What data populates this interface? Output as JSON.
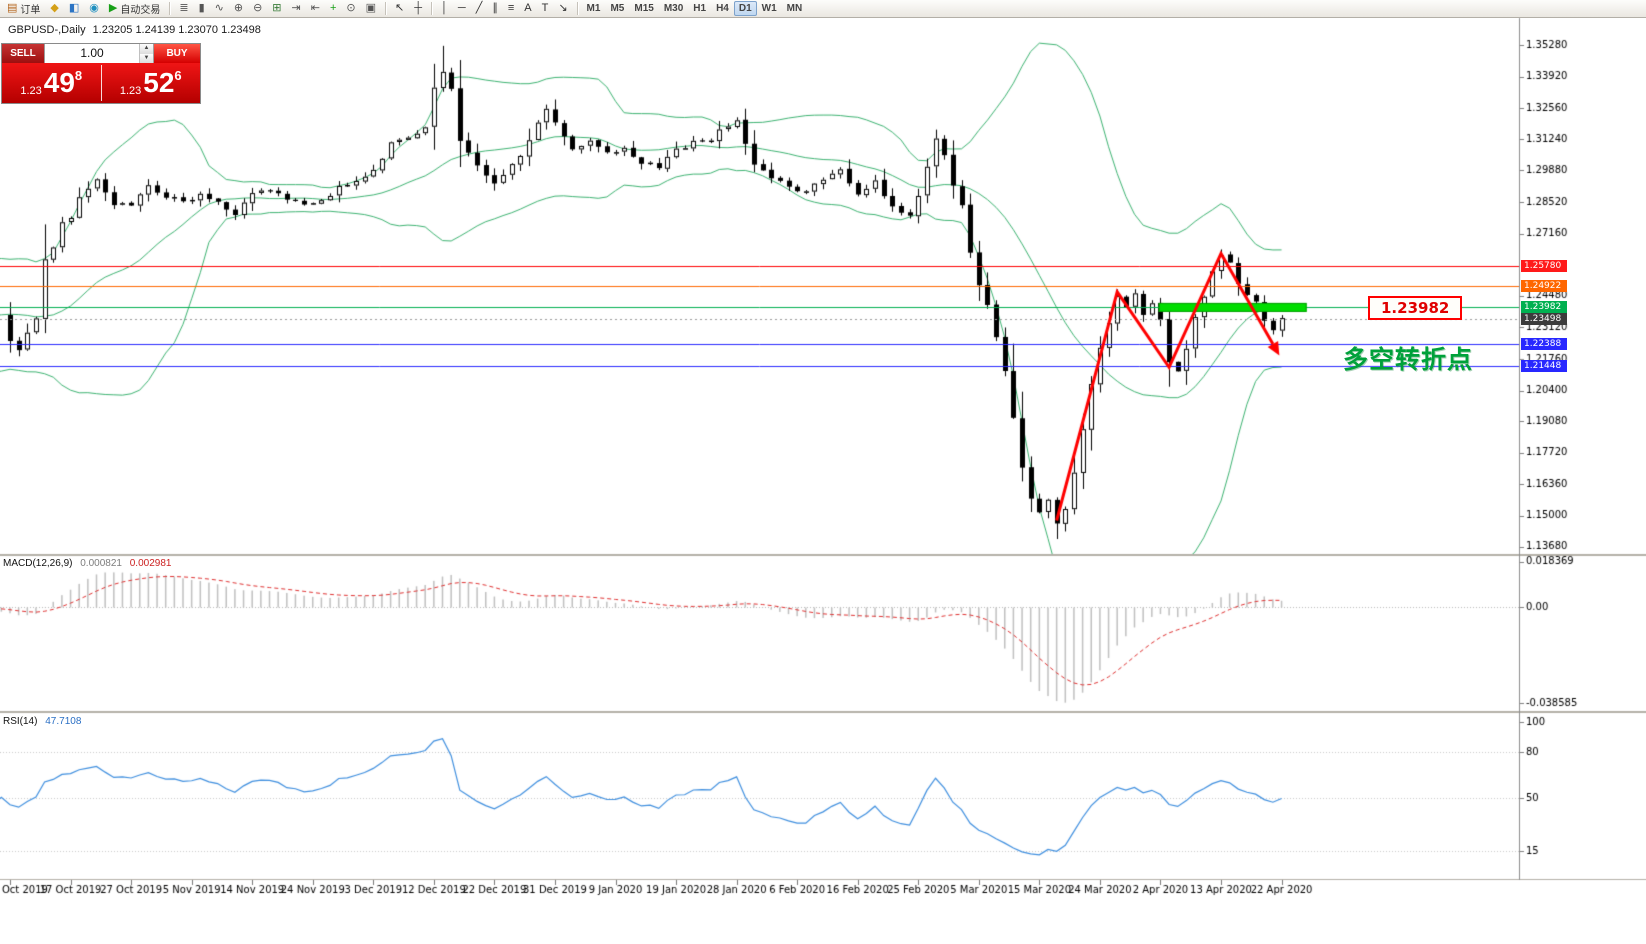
{
  "header": {
    "symbol_period": "GBPUSD-,Daily",
    "ohlc": "1.23205 1.24139 1.23070 1.23498"
  },
  "trade_panel": {
    "sell_label": "SELL",
    "buy_label": "BUY",
    "volume": "1.00",
    "spin_up": "▲",
    "spin_down": "▼",
    "sell_price_prefix": "1.23",
    "sell_price_big": "49",
    "sell_price_sup": "8",
    "buy_price_prefix": "1.23",
    "buy_price_big": "52",
    "buy_price_sup": "6"
  },
  "annotations": {
    "price_callout": "1.23982",
    "turning_point_note": "多空转折点"
  },
  "toolbar": {
    "groups": [
      {
        "items": [
          {
            "name": "new-order-button",
            "glyph": "▤",
            "glyph_color": "#b5651d",
            "label": "订单"
          },
          {
            "name": "market-watch-icon",
            "glyph": "◆",
            "glyph_color": "#d4a017"
          },
          {
            "name": "community-icon",
            "glyph": "◧",
            "glyph_color": "#2c74c4"
          },
          {
            "name": "help-icon",
            "glyph": "◉",
            "glyph_color": "#1f8fbf"
          },
          {
            "name": "autotrading-button",
            "glyph": "▶",
            "glyph_color": "#18a018",
            "label": "自动交易"
          }
        ]
      },
      {
        "items": [
          {
            "name": "bar-chart-mode-icon",
            "glyph": "≣",
            "glyph_color": "#555"
          },
          {
            "name": "candlestick-mode-icon",
            "glyph": "▮",
            "glyph_color": "#555"
          },
          {
            "name": "line-chart-mode-icon",
            "glyph": "∿",
            "glyph_color": "#555"
          },
          {
            "name": "zoom-in-icon",
            "glyph": "⊕",
            "glyph_color": "#555"
          },
          {
            "name": "zoom-out-icon",
            "glyph": "⊖",
            "glyph_color": "#555"
          },
          {
            "name": "tile-windows-icon",
            "glyph": "⊞",
            "glyph_color": "#3a7d3a"
          },
          {
            "name": "auto-scroll-icon",
            "glyph": "⇥",
            "glyph_color": "#555"
          },
          {
            "name": "chart-shift-icon",
            "glyph": "⇤",
            "glyph_color": "#555"
          },
          {
            "name": "indicators-add-icon",
            "glyph": "+",
            "glyph_color": "#18a018"
          },
          {
            "name": "period-clock-icon",
            "glyph": "⊙",
            "glyph_color": "#555"
          },
          {
            "name": "templates-icon",
            "glyph": "▣",
            "glyph_color": "#555"
          }
        ]
      },
      {
        "items": [
          {
            "name": "cursor-tool",
            "glyph": "↖",
            "glyph_color": "#333"
          },
          {
            "name": "crosshair-tool",
            "glyph": "┼",
            "glyph_color": "#333"
          }
        ]
      },
      {
        "items": [
          {
            "name": "vertical-line-tool",
            "glyph": "│",
            "glyph_color": "#333"
          },
          {
            "name": "horizontal-line-tool",
            "glyph": "─",
            "glyph_color": "#333"
          },
          {
            "name": "trendline-tool",
            "glyph": "╱",
            "glyph_color": "#333"
          },
          {
            "name": "channel-tool",
            "glyph": "∥",
            "glyph_color": "#333"
          },
          {
            "name": "fibonacci-tool",
            "glyph": "≡",
            "glyph_color": "#333"
          },
          {
            "name": "text-tool",
            "glyph": "A",
            "glyph_color": "#333"
          },
          {
            "name": "label-tool",
            "glyph": "T",
            "glyph_color": "#333"
          },
          {
            "name": "arrows-tool",
            "glyph": "↘",
            "glyph_color": "#333"
          }
        ]
      },
      {
        "items": [
          {
            "name": "timeframe-m1",
            "label": "M1",
            "tf": true
          },
          {
            "name": "timeframe-m5",
            "label": "M5",
            "tf": true
          },
          {
            "name": "timeframe-m15",
            "label": "M15",
            "tf": true
          },
          {
            "name": "timeframe-m30",
            "label": "M30",
            "tf": true
          },
          {
            "name": "timeframe-h1",
            "label": "H1",
            "tf": true
          },
          {
            "name": "timeframe-h4",
            "label": "H4",
            "tf": true
          },
          {
            "name": "timeframe-d1",
            "label": "D1",
            "tf": true,
            "active": true
          },
          {
            "name": "timeframe-w1",
            "label": "W1",
            "tf": true
          },
          {
            "name": "timeframe-mn",
            "label": "MN",
            "tf": true
          }
        ]
      }
    ]
  },
  "indicators": {
    "macd": {
      "title": "MACD(12,26,9)",
      "value1": "0.000821",
      "value2": "0.002981",
      "histogram_color": "#c0c0c0",
      "signal_color": "#e03030",
      "scale_labels": [
        [
          "0.018369",
          0.018369
        ],
        [
          "0.00",
          0
        ],
        [
          "-0.038585",
          -0.038585
        ]
      ]
    },
    "rsi": {
      "title": "RSI(14)",
      "value": "47.7108",
      "line_color": "#3f8fdf",
      "levels": [
        80,
        50,
        15
      ],
      "scale_labels": [
        [
          "100",
          100
        ],
        [
          "80",
          80
        ],
        [
          "50",
          50
        ],
        [
          "15",
          15
        ]
      ]
    }
  },
  "chart_data": {
    "type": "candlestick",
    "symbol": "GBPUSD-",
    "timeframe": "Daily",
    "last_ohlc": {
      "open": 1.23205,
      "high": 1.24139,
      "low": 1.2307,
      "close": 1.23498
    },
    "bid_price": 1.23498,
    "price_range_visible": [
      1.134,
      1.3645
    ],
    "price_axis_ticks": [
      1.3528,
      1.3392,
      1.3256,
      1.3124,
      1.2988,
      1.2852,
      1.2716,
      1.2448,
      1.2312,
      1.2176,
      1.204,
      1.1908,
      1.1772,
      1.1636,
      1.15,
      1.1368
    ],
    "date_labels": [
      "Oct 2019",
      "17 Oct 2019",
      "27 Oct 2019",
      "5 Nov 2019",
      "14 Nov 2019",
      "24 Nov 2019",
      "3 Dec 2019",
      "12 Dec 2019",
      "22 Dec 2019",
      "31 Dec 2019",
      "9 Jan 2020",
      "19 Jan 2020",
      "28 Jan 2020",
      "6 Feb 2020",
      "16 Feb 2020",
      "25 Feb 2020",
      "5 Mar 2020",
      "15 Mar 2020",
      "24 Mar 2020",
      "2 Apr 2020",
      "13 Apr 2020",
      "22 Apr 2020"
    ],
    "candles_per_date_label": 7,
    "num_candles": 148,
    "close_waypoints": [
      [
        0,
        1.2255
      ],
      [
        1,
        1.2225
      ],
      [
        2,
        1.229
      ],
      [
        3,
        1.2345
      ],
      [
        4,
        1.261
      ],
      [
        5,
        1.2645
      ],
      [
        6,
        1.276
      ],
      [
        7,
        1.279
      ],
      [
        8,
        1.2875
      ],
      [
        10,
        1.2955
      ],
      [
        12,
        1.285
      ],
      [
        14,
        1.2825
      ],
      [
        16,
        1.2935
      ],
      [
        18,
        1.287
      ],
      [
        20,
        1.286
      ],
      [
        22,
        1.288
      ],
      [
        24,
        1.2845
      ],
      [
        26,
        1.28
      ],
      [
        28,
        1.288
      ],
      [
        30,
        1.2905
      ],
      [
        32,
        1.286
      ],
      [
        34,
        1.2835
      ],
      [
        36,
        1.2855
      ],
      [
        38,
        1.2915
      ],
      [
        40,
        1.2935
      ],
      [
        42,
        1.2995
      ],
      [
        44,
        1.3105
      ],
      [
        46,
        1.3135
      ],
      [
        48,
        1.3165
      ],
      [
        49,
        1.3335
      ],
      [
        50,
        1.342
      ],
      [
        51,
        1.333
      ],
      [
        52,
        1.3125
      ],
      [
        54,
        1.301
      ],
      [
        56,
        1.294
      ],
      [
        58,
        1.3005
      ],
      [
        60,
        1.3115
      ],
      [
        62,
        1.325
      ],
      [
        63,
        1.32
      ],
      [
        65,
        1.309
      ],
      [
        67,
        1.311
      ],
      [
        69,
        1.3065
      ],
      [
        71,
        1.3085
      ],
      [
        73,
        1.3025
      ],
      [
        75,
        1.3005
      ],
      [
        77,
        1.3075
      ],
      [
        79,
        1.3105
      ],
      [
        81,
        1.3125
      ],
      [
        83,
        1.3185
      ],
      [
        84,
        1.3205
      ],
      [
        86,
        1.301
      ],
      [
        88,
        1.2955
      ],
      [
        90,
        1.2925
      ],
      [
        92,
        1.2895
      ],
      [
        94,
        1.2955
      ],
      [
        96,
        1.2995
      ],
      [
        98,
        1.2885
      ],
      [
        100,
        1.294
      ],
      [
        102,
        1.2825
      ],
      [
        104,
        1.279
      ],
      [
        105,
        1.289
      ],
      [
        106,
        1.301
      ],
      [
        107,
        1.3115
      ],
      [
        108,
        1.306
      ],
      [
        109,
        1.2925
      ],
      [
        110,
        1.2845
      ],
      [
        111,
        1.2625
      ],
      [
        112,
        1.2505
      ],
      [
        113,
        1.2405
      ],
      [
        114,
        1.2275
      ],
      [
        115,
        1.2125
      ],
      [
        116,
        1.1915
      ],
      [
        117,
        1.1715
      ],
      [
        118,
        1.1585
      ],
      [
        119,
        1.1505
      ],
      [
        120,
        1.157
      ],
      [
        121,
        1.1475
      ],
      [
        122,
        1.153
      ],
      [
        123,
        1.169
      ],
      [
        124,
        1.188
      ],
      [
        125,
        1.207
      ],
      [
        126,
        1.223
      ],
      [
        127,
        1.234
      ],
      [
        128,
        1.2455
      ],
      [
        129,
        1.241
      ],
      [
        130,
        1.2465
      ],
      [
        131,
        1.237
      ],
      [
        132,
        1.242
      ],
      [
        133,
        1.2335
      ],
      [
        134,
        1.2165
      ],
      [
        135,
        1.212
      ],
      [
        136,
        1.223
      ],
      [
        137,
        1.2355
      ],
      [
        138,
        1.2445
      ],
      [
        139,
        1.2545
      ],
      [
        140,
        1.2625
      ],
      [
        141,
        1.2585
      ],
      [
        142,
        1.2505
      ],
      [
        143,
        1.245
      ],
      [
        144,
        1.2415
      ],
      [
        145,
        1.2345
      ],
      [
        146,
        1.2295
      ],
      [
        147,
        1.235
      ]
    ],
    "wick_overrides": {
      "50": {
        "h": 1.3525
      },
      "121": {
        "l": 1.1425
      },
      "140": {
        "h": 1.2648
      }
    },
    "bollinger": {
      "period": 20,
      "deviation": 2,
      "color": "#3cb371"
    },
    "candle_up_color": "#ffffff",
    "candle_down_color": "#000000",
    "key_levels": [
      {
        "price": 1.2578,
        "color": "#ff0000",
        "badge_color": "#ff1a1a",
        "line": true
      },
      {
        "price": 1.24922,
        "color": "#ff6600",
        "badge_color": "#ff6600",
        "line": true
      },
      {
        "price": 1.23982,
        "color": "#00b050",
        "badge_color": "#00b050",
        "line": true
      },
      {
        "price": 1.23498,
        "color": "#999999",
        "badge_color": "#3c3c3c",
        "line": true,
        "dash": [
          2,
          3
        ]
      },
      {
        "price": 1.22388,
        "color": "#2828ff",
        "badge_color": "#2828ff",
        "line": true
      },
      {
        "price": 1.21448,
        "color": "#2828ff",
        "badge_color": "#2828ff",
        "line": true
      }
    ],
    "highlight_zone": {
      "price": 1.2398,
      "start_candle": 132.8,
      "end_candle": 149.9,
      "color": "#00dd00"
    },
    "trend_arrows": {
      "color": "#ff0000",
      "points": [
        [
          121,
          1.148
        ],
        [
          128,
          1.2465
        ],
        [
          134,
          1.214
        ],
        [
          140,
          1.263
        ],
        [
          146,
          1.224
        ]
      ]
    }
  }
}
